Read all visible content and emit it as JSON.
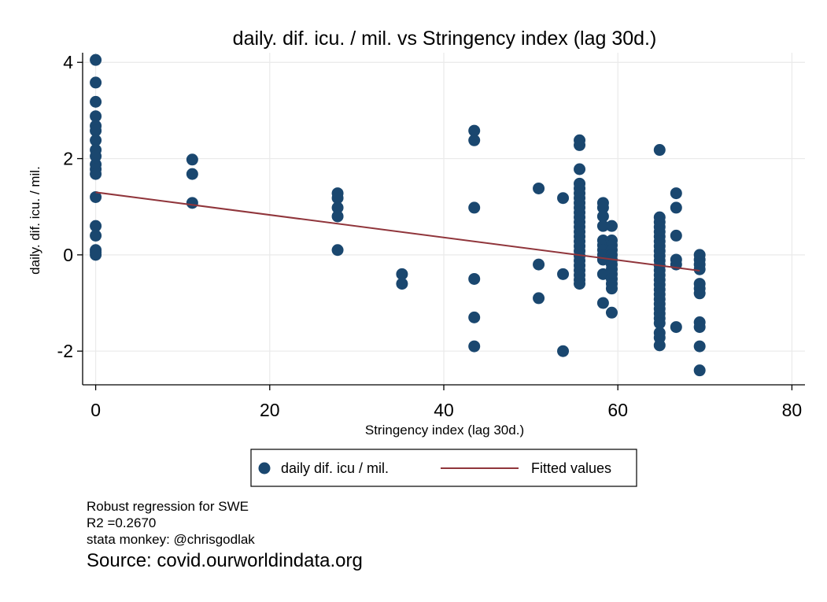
{
  "chart_data": {
    "type": "scatter",
    "title": "daily. dif. icu. / mil. vs Stringency index (lag 30d.)",
    "xlabel": "Stringency index (lag 30d.)",
    "ylabel": "daily. dif. icu. / mil.",
    "xlim": [
      -1.5,
      81.5
    ],
    "ylim": [
      -2.7,
      4.2
    ],
    "xticks": [
      0,
      20,
      40,
      60,
      80
    ],
    "yticks": [
      -2,
      0,
      2,
      4
    ],
    "grid": true,
    "legend_position": "bottom",
    "colors": {
      "points": "#1a476f",
      "fit": "#90353b",
      "grid": "#eaeaea"
    },
    "series": [
      {
        "name": "daily dif. icu / mil.",
        "points": [
          [
            0,
            4.05
          ],
          [
            0,
            3.58
          ],
          [
            0,
            3.18
          ],
          [
            0,
            2.88
          ],
          [
            0,
            2.68
          ],
          [
            0,
            2.58
          ],
          [
            0,
            2.38
          ],
          [
            0,
            2.18
          ],
          [
            0,
            2.05
          ],
          [
            0,
            1.88
          ],
          [
            0,
            1.78
          ],
          [
            0,
            1.68
          ],
          [
            0,
            1.2
          ],
          [
            0,
            0.6
          ],
          [
            0,
            0.4
          ],
          [
            0,
            0.1
          ],
          [
            0,
            0.05
          ],
          [
            0,
            0.0
          ],
          [
            11.1,
            1.98
          ],
          [
            11.1,
            1.68
          ],
          [
            11.1,
            1.08
          ],
          [
            27.8,
            1.28
          ],
          [
            27.8,
            1.18
          ],
          [
            27.8,
            0.98
          ],
          [
            27.8,
            0.8
          ],
          [
            27.8,
            0.1
          ],
          [
            35.2,
            -0.4
          ],
          [
            35.2,
            -0.6
          ],
          [
            43.5,
            2.58
          ],
          [
            43.5,
            2.38
          ],
          [
            43.5,
            0.98
          ],
          [
            43.5,
            -0.5
          ],
          [
            43.5,
            -1.3
          ],
          [
            43.5,
            -1.9
          ],
          [
            50.9,
            1.38
          ],
          [
            50.9,
            -0.2
          ],
          [
            50.9,
            -0.9
          ],
          [
            53.7,
            1.18
          ],
          [
            53.7,
            -0.4
          ],
          [
            53.7,
            -2.0
          ],
          [
            55.6,
            2.38
          ],
          [
            55.6,
            2.28
          ],
          [
            55.6,
            1.78
          ],
          [
            55.6,
            1.48
          ],
          [
            55.6,
            1.38
          ],
          [
            55.6,
            1.28
          ],
          [
            55.6,
            1.18
          ],
          [
            55.6,
            1.08
          ],
          [
            55.6,
            0.98
          ],
          [
            55.6,
            0.88
          ],
          [
            55.6,
            0.78
          ],
          [
            55.6,
            0.68
          ],
          [
            55.6,
            0.58
          ],
          [
            55.6,
            0.48
          ],
          [
            55.6,
            0.38
          ],
          [
            55.6,
            0.28
          ],
          [
            55.6,
            0.18
          ],
          [
            55.6,
            0.08
          ],
          [
            55.6,
            -0.02
          ],
          [
            55.6,
            -0.12
          ],
          [
            55.6,
            -0.22
          ],
          [
            55.6,
            -0.32
          ],
          [
            55.6,
            -0.42
          ],
          [
            55.6,
            -0.52
          ],
          [
            55.6,
            -0.6
          ],
          [
            58.3,
            1.08
          ],
          [
            58.3,
            0.98
          ],
          [
            58.3,
            0.8
          ],
          [
            58.3,
            0.6
          ],
          [
            58.3,
            0.3
          ],
          [
            58.3,
            0.2
          ],
          [
            58.3,
            0.1
          ],
          [
            58.3,
            0.0
          ],
          [
            58.3,
            -0.1
          ],
          [
            58.3,
            -0.4
          ],
          [
            58.3,
            -1.0
          ],
          [
            59.3,
            0.6
          ],
          [
            59.3,
            0.3
          ],
          [
            59.3,
            0.2
          ],
          [
            59.3,
            0.1
          ],
          [
            59.3,
            0.0
          ],
          [
            59.3,
            -0.1
          ],
          [
            59.3,
            -0.2
          ],
          [
            59.3,
            -0.3
          ],
          [
            59.3,
            -0.4
          ],
          [
            59.3,
            -0.5
          ],
          [
            59.3,
            -0.6
          ],
          [
            59.3,
            -0.7
          ],
          [
            59.3,
            -1.2
          ],
          [
            64.8,
            2.18
          ],
          [
            64.8,
            0.78
          ],
          [
            64.8,
            0.68
          ],
          [
            64.8,
            0.58
          ],
          [
            64.8,
            0.48
          ],
          [
            64.8,
            0.38
          ],
          [
            64.8,
            0.28
          ],
          [
            64.8,
            0.18
          ],
          [
            64.8,
            0.08
          ],
          [
            64.8,
            -0.02
          ],
          [
            64.8,
            -0.12
          ],
          [
            64.8,
            -0.22
          ],
          [
            64.8,
            -0.32
          ],
          [
            64.8,
            -0.42
          ],
          [
            64.8,
            -0.52
          ],
          [
            64.8,
            -0.62
          ],
          [
            64.8,
            -0.72
          ],
          [
            64.8,
            -0.82
          ],
          [
            64.8,
            -0.92
          ],
          [
            64.8,
            -1.02
          ],
          [
            64.8,
            -1.12
          ],
          [
            64.8,
            -1.22
          ],
          [
            64.8,
            -1.32
          ],
          [
            64.8,
            -1.42
          ],
          [
            64.8,
            -1.62
          ],
          [
            64.8,
            -1.72
          ],
          [
            64.8,
            -1.88
          ],
          [
            66.7,
            1.28
          ],
          [
            66.7,
            0.98
          ],
          [
            66.7,
            0.4
          ],
          [
            66.7,
            -0.1
          ],
          [
            66.7,
            -0.2
          ],
          [
            66.7,
            -1.5
          ],
          [
            69.4,
            0.0
          ],
          [
            69.4,
            -0.1
          ],
          [
            69.4,
            -0.2
          ],
          [
            69.4,
            -0.3
          ],
          [
            69.4,
            -0.6
          ],
          [
            69.4,
            -0.7
          ],
          [
            69.4,
            -0.8
          ],
          [
            69.4,
            -1.4
          ],
          [
            69.4,
            -1.5
          ],
          [
            69.4,
            -1.9
          ],
          [
            69.4,
            -2.4
          ]
        ]
      },
      {
        "name": "Fitted values",
        "line": [
          [
            0,
            1.3
          ],
          [
            69.4,
            -0.33
          ]
        ]
      }
    ]
  },
  "legend": {
    "items": [
      "daily dif. icu / mil.",
      "Fitted values"
    ]
  },
  "notes": {
    "lines": [
      "Robust regression for SWE",
      "R2 =0.2670",
      "stata monkey: @chrisgodlak"
    ],
    "source": "Source: covid.ourworldindata.org"
  }
}
